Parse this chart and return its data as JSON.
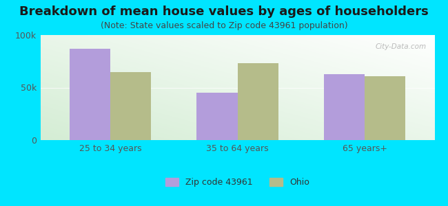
{
  "title": "Breakdown of mean house values by ages of householders",
  "subtitle": "(Note: State values scaled to Zip code 43961 population)",
  "categories": [
    "25 to 34 years",
    "35 to 64 years",
    "65 years+"
  ],
  "zip_values": [
    87000,
    45000,
    63000
  ],
  "ohio_values": [
    65000,
    73000,
    61000
  ],
  "zip_color": "#b39ddb",
  "ohio_color": "#b5bc8a",
  "background_color": "#00e5ff",
  "ylim": [
    0,
    100000
  ],
  "ytick_labels": [
    "0",
    "50k",
    "100k"
  ],
  "legend_zip_label": "Zip code 43961",
  "legend_ohio_label": "Ohio",
  "bar_width": 0.32,
  "watermark": "City-Data.com",
  "title_fontsize": 13,
  "subtitle_fontsize": 9,
  "tick_fontsize": 9,
  "legend_fontsize": 9,
  "grad_left": "#d4edd4",
  "grad_right": "#f0f5f0"
}
